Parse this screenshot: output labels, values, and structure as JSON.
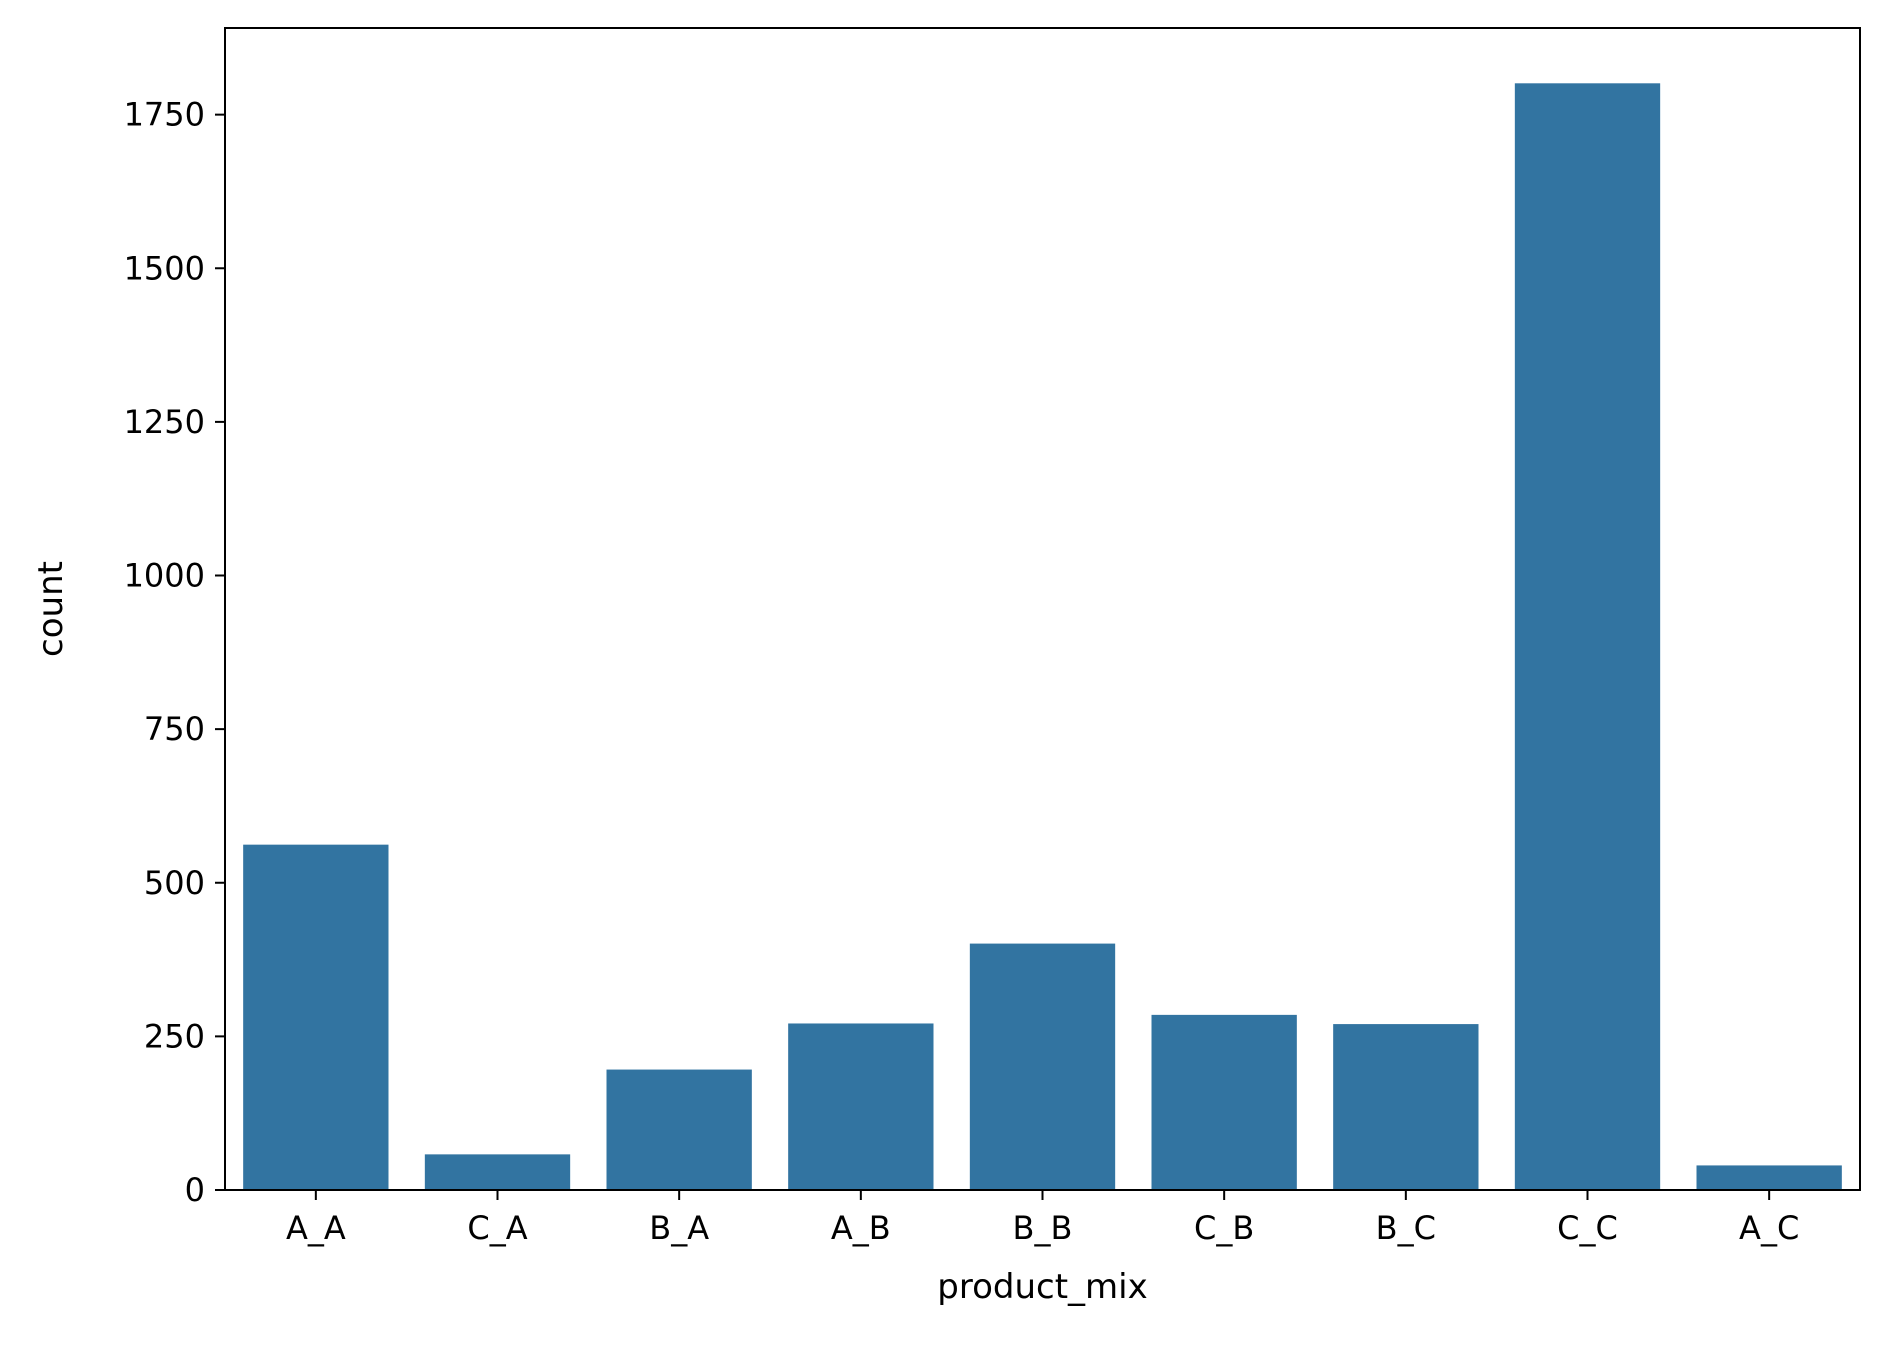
{
  "chart_data": {
    "type": "bar",
    "title": "",
    "xlabel": "product_mix",
    "ylabel": "count",
    "categories": [
      "A_A",
      "C_A",
      "B_A",
      "A_B",
      "B_B",
      "C_B",
      "B_C",
      "C_C",
      "A_C"
    ],
    "values": [
      562,
      58,
      196,
      271,
      401,
      285,
      270,
      1801,
      40
    ],
    "ylim": [
      0,
      1891
    ],
    "yticks": [
      0,
      250,
      500,
      750,
      1000,
      1250,
      1500,
      1750
    ],
    "ytick_labels": [
      "0",
      "250",
      "500",
      "750",
      "1000",
      "1250",
      "1500",
      "1750"
    ],
    "grid": false,
    "legend": "none",
    "bar_color": "#3274a1"
  }
}
